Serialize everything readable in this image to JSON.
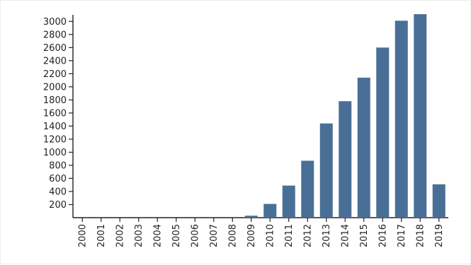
{
  "chart_data": {
    "type": "bar",
    "title": "",
    "xlabel": "",
    "ylabel": "",
    "categories": [
      "2000",
      "2001",
      "2002",
      "2003",
      "2004",
      "2005",
      "2006",
      "2007",
      "2008",
      "2009",
      "2010",
      "2011",
      "2012",
      "2013",
      "2014",
      "2015",
      "2016",
      "2017",
      "2018",
      "2019"
    ],
    "values": [
      0,
      0,
      0,
      0,
      0,
      0,
      0,
      0,
      0,
      30,
      210,
      490,
      870,
      1440,
      1780,
      2140,
      2600,
      3010,
      3110,
      510
    ],
    "ylim": [
      0,
      3100
    ],
    "yticks": [
      200,
      400,
      600,
      800,
      1000,
      1200,
      1400,
      1600,
      1800,
      2000,
      2200,
      2400,
      2600,
      2800,
      3000
    ],
    "grid": false,
    "colors": {
      "bar": "#4a6f97",
      "axis": "#222222"
    }
  }
}
